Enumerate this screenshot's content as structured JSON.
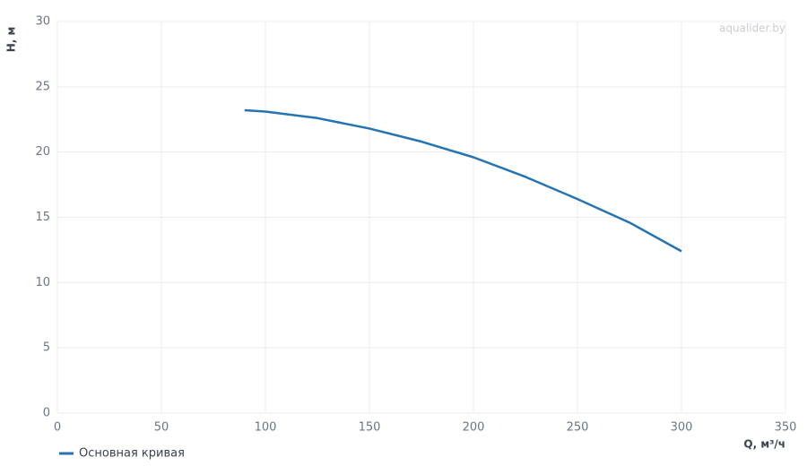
{
  "chart_data": {
    "type": "line",
    "watermark": "aqualider.by",
    "x_label": "Q, м³/ч",
    "y_label": "H, м",
    "x": [
      90,
      100,
      125,
      150,
      175,
      200,
      225,
      250,
      275,
      300
    ],
    "series": [
      {
        "name": "Основная кривая",
        "color": "#2473b3",
        "values": [
          23.2,
          23.1,
          22.6,
          21.8,
          20.8,
          19.6,
          18.1,
          16.4,
          14.6,
          12.4
        ]
      }
    ],
    "xlim": [
      0,
      350
    ],
    "xticks": [
      0,
      50,
      100,
      150,
      200,
      250,
      300,
      350
    ],
    "ylim": [
      0,
      30
    ],
    "yticks": [
      0,
      5,
      10,
      15,
      20,
      25,
      30
    ],
    "grid": true
  }
}
